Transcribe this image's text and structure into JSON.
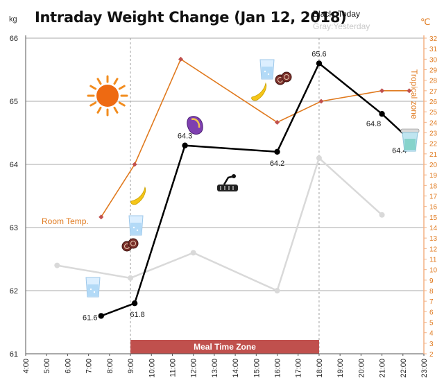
{
  "chart_data": {
    "type": "line",
    "title": "Intraday Weight Change (Jan 12, 2018)",
    "legend": {
      "today": "Black :Today",
      "yesterday": "Gray:Yesterday",
      "placement": "top-right"
    },
    "y_left": {
      "unit": "kg",
      "min": 61,
      "max": 66,
      "ticks": [
        "61",
        "62",
        "63",
        "64",
        "65",
        "66"
      ]
    },
    "y_right": {
      "unit": "℃",
      "min": 2,
      "max": 32,
      "ticks": [
        "2",
        "3",
        "4",
        "5",
        "6",
        "7",
        "8",
        "9",
        "10",
        "11",
        "12",
        "13",
        "14",
        "15",
        "16",
        "17",
        "18",
        "19",
        "20",
        "21",
        "22",
        "23",
        "24",
        "25",
        "26",
        "27",
        "28",
        "29",
        "30",
        "31",
        "32"
      ]
    },
    "x_axis": {
      "min": 4,
      "max": 23,
      "ticks": [
        "4:00",
        "5:00",
        "6:00",
        "7:00",
        "8:00",
        "9:00",
        "10:00",
        "11:00",
        "12:00",
        "13:00",
        "14:00",
        "15:00",
        "16:00",
        "17:00",
        "18:00",
        "19:00",
        "20:00",
        "21:00",
        "22:00",
        "23:00"
      ]
    },
    "grid": true,
    "series": [
      {
        "name": "Today",
        "color": "#000000",
        "axis": "kg",
        "x": [
          7.6,
          9.2,
          11.6,
          16.0,
          18.0,
          21.0,
          22.3
        ],
        "values": [
          61.6,
          61.8,
          64.3,
          64.2,
          65.6,
          64.8,
          64.4
        ],
        "labels": [
          "61.6",
          "61.8",
          "64.3",
          "64.2",
          "65.6",
          "64.8",
          "64.4"
        ]
      },
      {
        "name": "Yesterday",
        "color": "#d9d9d9",
        "axis": "kg",
        "x": [
          5.5,
          9.0,
          12.0,
          16.0,
          18.0,
          21.0
        ],
        "values": [
          62.4,
          62.2,
          62.6,
          62.0,
          64.1,
          63.2
        ]
      },
      {
        "name": "Room Temp.",
        "color": "#e07a1f",
        "axis": "temp",
        "x": [
          7.6,
          9.2,
          11.4,
          16.0,
          18.1,
          21.0,
          22.3
        ],
        "values": [
          15,
          20,
          30,
          24,
          26,
          27,
          27
        ]
      }
    ],
    "annotations": {
      "room_temp": "Room Temp.",
      "tropical_zone": "Tropical zone",
      "meal_zone": {
        "label": "Meal Time Zone",
        "from": 9,
        "to": 18,
        "color": "#c0504d"
      }
    },
    "icons": [
      "sun-icon",
      "banana-icon",
      "water-glass-icon",
      "sweet-potato-icon",
      "rice-cracker-icon",
      "bicycle-icon",
      "trash-can-icon"
    ]
  }
}
